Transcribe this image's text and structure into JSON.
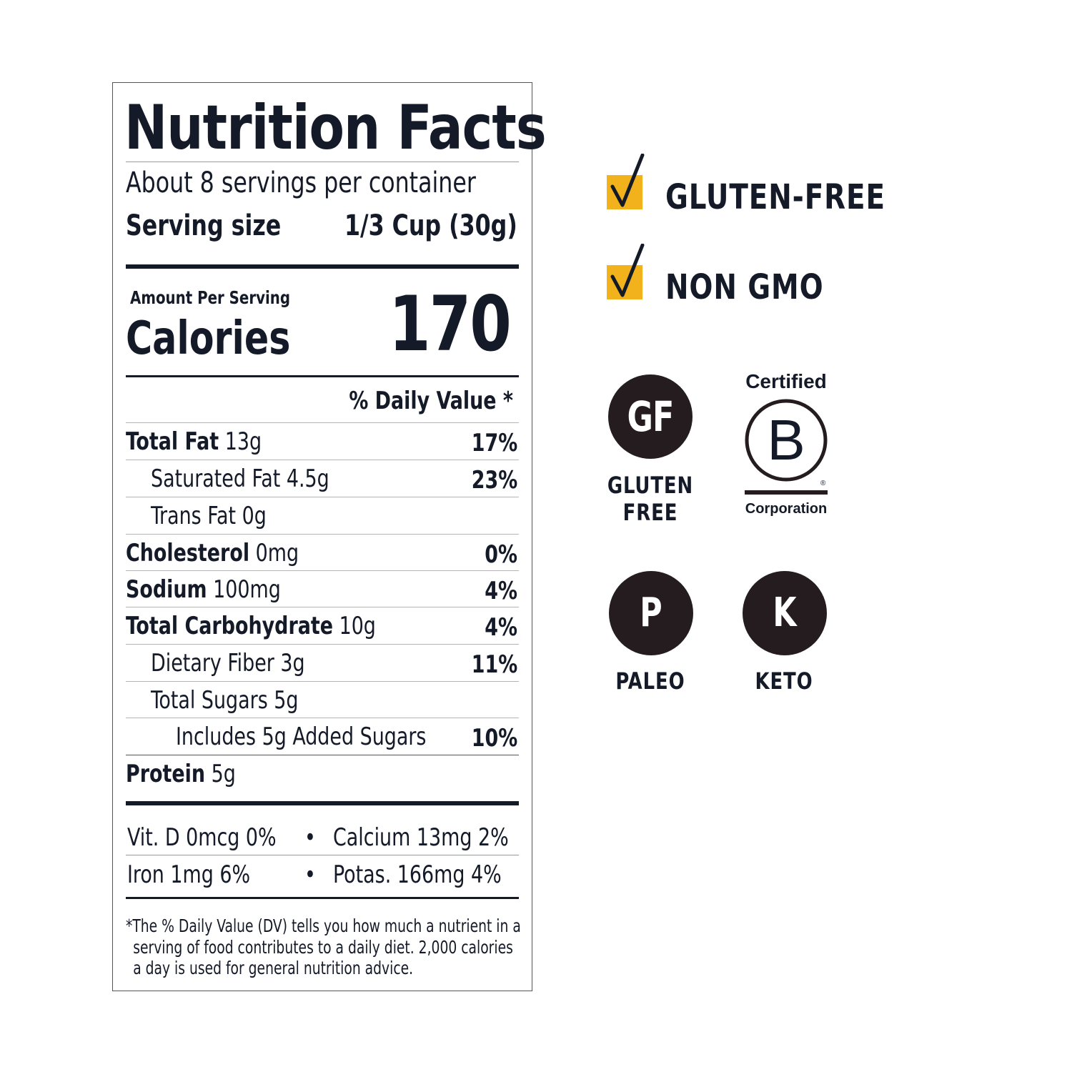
{
  "label": {
    "title": "Nutrition Facts",
    "servings_per_container": "About 8 servings per container",
    "serving_size_label": "Serving size",
    "serving_size_value": "1/3 Cup (30g)",
    "amount_per_serving": "Amount Per Serving",
    "calories_label": "Calories",
    "calories_value": "170",
    "daily_value_header": "% Daily Value *",
    "nutrients": [
      {
        "name": "Total Fat",
        "amount": "13g",
        "dv": "17%"
      },
      {
        "name": "Saturated Fat",
        "amount": "4.5g",
        "dv": "23%"
      },
      {
        "name": "Trans Fat",
        "amount": "0g",
        "dv": ""
      },
      {
        "name": "Cholesterol",
        "amount": "0mg",
        "dv": "0%"
      },
      {
        "name": "Sodium",
        "amount": "100mg",
        "dv": "4%"
      },
      {
        "name": "Total Carbohydrate",
        "amount": "10g",
        "dv": "4%"
      },
      {
        "name": "Dietary Fiber",
        "amount": "3g",
        "dv": "11%"
      },
      {
        "name": "Total Sugars",
        "amount": "5g",
        "dv": ""
      },
      {
        "name": "Includes 5g Added Sugars",
        "amount": "",
        "dv": "10%"
      },
      {
        "name": "Protein",
        "amount": "5g",
        "dv": ""
      }
    ],
    "vitamins": {
      "vit_d": "Vit. D 0mcg 0%",
      "calcium": "Calcium 13mg  2%",
      "iron": "Iron 1mg 6%",
      "potassium": "Potas. 166mg  4%",
      "bullet": "•"
    },
    "footnote_line1": "*The % Daily Value (DV) tells you how much a nutrient in a",
    "footnote_line2": "serving of food contributes to a daily diet. 2,000 calories",
    "footnote_line3": "a day is used for general nutrition advice."
  },
  "claims": {
    "gluten_free": "GLUTEN-FREE",
    "non_gmo": "NON GMO",
    "accent_color": "#f2b21b"
  },
  "badges": {
    "gf_symbol": "GF",
    "gf_label_line1": "GLUTEN",
    "gf_label_line2": "FREE",
    "bcorp_top": "Certified",
    "bcorp_letter": "B",
    "bcorp_bottom": "Corporation",
    "bcorp_reg": "®",
    "paleo_symbol": "P",
    "paleo_label": "PALEO",
    "keto_symbol": "K",
    "keto_label": "KETO"
  }
}
